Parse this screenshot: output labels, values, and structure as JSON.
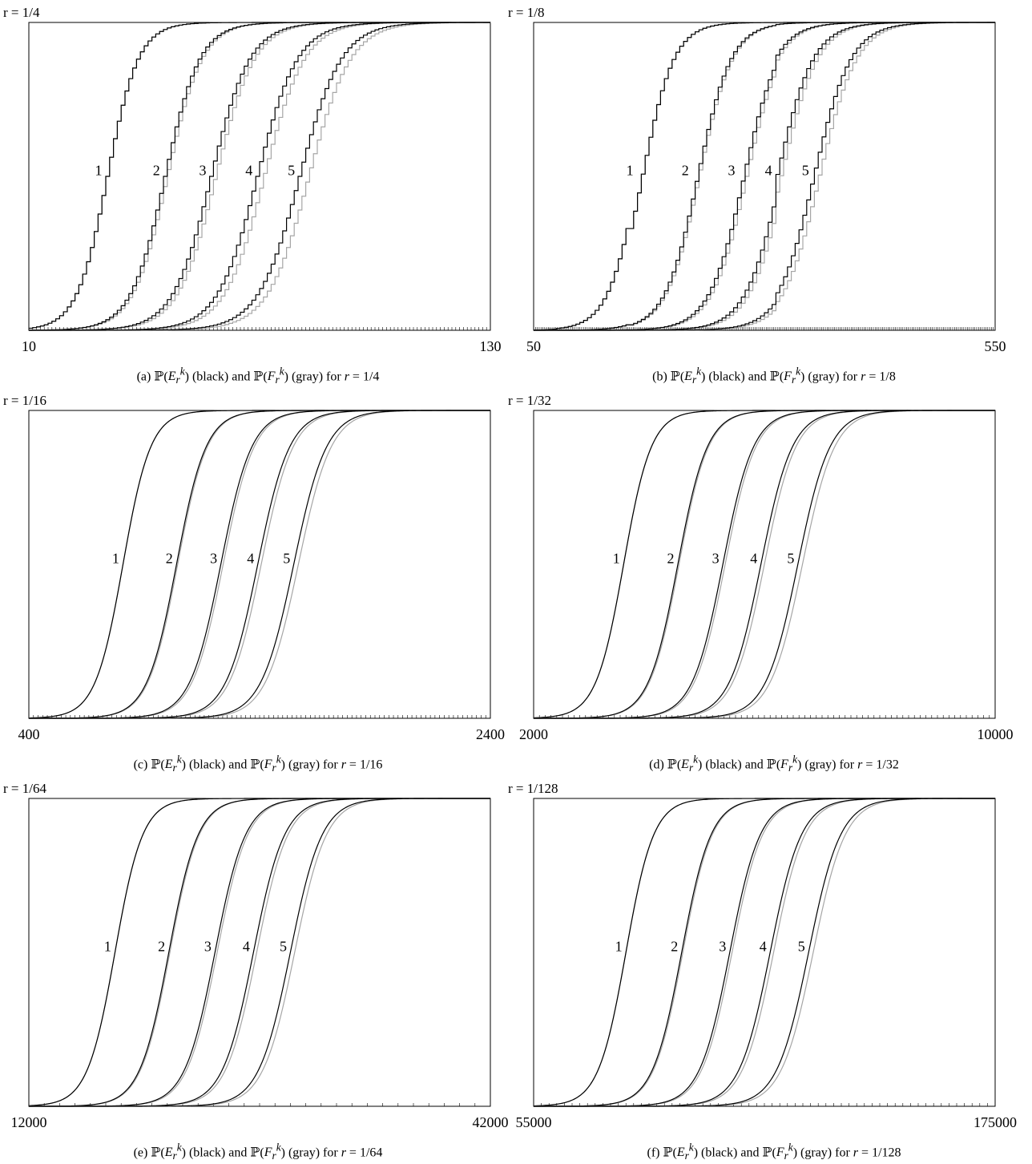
{
  "legend": {
    "black_word": "(black)",
    "gray_word": "(gray)",
    "and_word": "and",
    "for_word": "for"
  },
  "colors": {
    "black_curve": "#000000",
    "gray_curve": "#a6a6a6"
  },
  "chart_data": [
    {
      "type": "line",
      "step": true,
      "r_label": "r = 1/4",
      "caption_tag": "(a)",
      "r_value": "1/4",
      "xlim": [
        10,
        130
      ],
      "ylim": [
        0,
        1
      ],
      "x_tick_labels": [
        "10",
        "130"
      ],
      "minor_tick_step": 1,
      "series": [
        {
          "k": "1",
          "median": 30,
          "scale": 4.0,
          "gray_shift": 0.0
        },
        {
          "k": "2",
          "median": 45,
          "scale": 4.5,
          "gray_shift": 0.6
        },
        {
          "k": "3",
          "median": 57,
          "scale": 5.0,
          "gray_shift": 1.2
        },
        {
          "k": "4",
          "median": 69,
          "scale": 5.2,
          "gray_shift": 1.8
        },
        {
          "k": "5",
          "median": 80,
          "scale": 5.4,
          "gray_shift": 2.4
        }
      ],
      "label_y": 0.52
    },
    {
      "type": "line",
      "step": true,
      "r_label": "r = 1/8",
      "caption_tag": "(b)",
      "r_value": "1/8",
      "xlim": [
        50,
        550
      ],
      "ylim": [
        0,
        1
      ],
      "x_tick_labels": [
        "50",
        "550"
      ],
      "minor_tick_step": 2,
      "series": [
        {
          "k": "1",
          "median": 162,
          "scale": 17,
          "gray_shift": 0.0
        },
        {
          "k": "2",
          "median": 222,
          "scale": 18,
          "gray_shift": 1.5
        },
        {
          "k": "3",
          "median": 272,
          "scale": 19,
          "gray_shift": 3.0
        },
        {
          "k": "4",
          "median": 312,
          "scale": 19.5,
          "gray_shift": 4.5
        },
        {
          "k": "5",
          "median": 352,
          "scale": 20,
          "gray_shift": 6.0
        }
      ],
      "label_y": 0.52
    },
    {
      "type": "line",
      "step": false,
      "r_label": "r = 1/16",
      "caption_tag": "(c)",
      "r_value": "1/16",
      "xlim": [
        400,
        2400
      ],
      "ylim": [
        0,
        1
      ],
      "x_tick_labels": [
        "400",
        "2400"
      ],
      "minor_tick_step": 20,
      "series": [
        {
          "k": "1",
          "median": 808,
          "scale": 60,
          "gray_shift": 0
        },
        {
          "k": "2",
          "median": 1040,
          "scale": 64,
          "gray_shift": 5
        },
        {
          "k": "3",
          "median": 1232,
          "scale": 67,
          "gray_shift": 10
        },
        {
          "k": "4",
          "median": 1392,
          "scale": 69,
          "gray_shift": 15
        },
        {
          "k": "5",
          "median": 1548,
          "scale": 71,
          "gray_shift": 20
        }
      ],
      "label_y": 0.52
    },
    {
      "type": "line",
      "step": false,
      "r_label": "r = 1/32",
      "caption_tag": "(d)",
      "r_value": "1/32",
      "xlim": [
        2000,
        10000
      ],
      "ylim": [
        0,
        1
      ],
      "x_tick_labels": [
        "2000",
        "10000"
      ],
      "minor_tick_step": 100,
      "series": [
        {
          "k": "1",
          "median": 3560,
          "scale": 240,
          "gray_shift": 0
        },
        {
          "k": "2",
          "median": 4500,
          "scale": 255,
          "gray_shift": 20
        },
        {
          "k": "3",
          "median": 5280,
          "scale": 265,
          "gray_shift": 40
        },
        {
          "k": "4",
          "median": 5940,
          "scale": 272,
          "gray_shift": 60
        },
        {
          "k": "5",
          "median": 6580,
          "scale": 278,
          "gray_shift": 80
        }
      ],
      "label_y": 0.52
    },
    {
      "type": "line",
      "step": false,
      "r_label": "r = 1/64",
      "caption_tag": "(e)",
      "r_value": "1/64",
      "xlim": [
        12000,
        42000
      ],
      "ylim": [
        0,
        1
      ],
      "x_tick_labels": [
        "12000",
        "42000"
      ],
      "minor_tick_step": 1000,
      "series": [
        {
          "k": "1",
          "median": 17600,
          "scale": 900,
          "gray_shift": 0
        },
        {
          "k": "2",
          "median": 21100,
          "scale": 950,
          "gray_shift": 70
        },
        {
          "k": "3",
          "median": 24100,
          "scale": 990,
          "gray_shift": 140
        },
        {
          "k": "4",
          "median": 26600,
          "scale": 1010,
          "gray_shift": 210
        },
        {
          "k": "5",
          "median": 29000,
          "scale": 1030,
          "gray_shift": 280
        }
      ],
      "label_y": 0.52
    },
    {
      "type": "line",
      "step": false,
      "r_label": "r = 1/128",
      "caption_tag": "(f)",
      "r_value": "1/128",
      "xlim": [
        55000,
        175000
      ],
      "ylim": [
        0,
        1
      ],
      "x_tick_labels": [
        "55000",
        "175000"
      ],
      "minor_tick_step": 2000,
      "series": [
        {
          "k": "1",
          "median": 79000,
          "scale": 3600,
          "gray_shift": 0
        },
        {
          "k": "2",
          "median": 93500,
          "scale": 3800,
          "gray_shift": 300
        },
        {
          "k": "3",
          "median": 106000,
          "scale": 3950,
          "gray_shift": 600
        },
        {
          "k": "4",
          "median": 116500,
          "scale": 4050,
          "gray_shift": 900
        },
        {
          "k": "5",
          "median": 126500,
          "scale": 4150,
          "gray_shift": 1200
        }
      ],
      "label_y": 0.52
    }
  ]
}
